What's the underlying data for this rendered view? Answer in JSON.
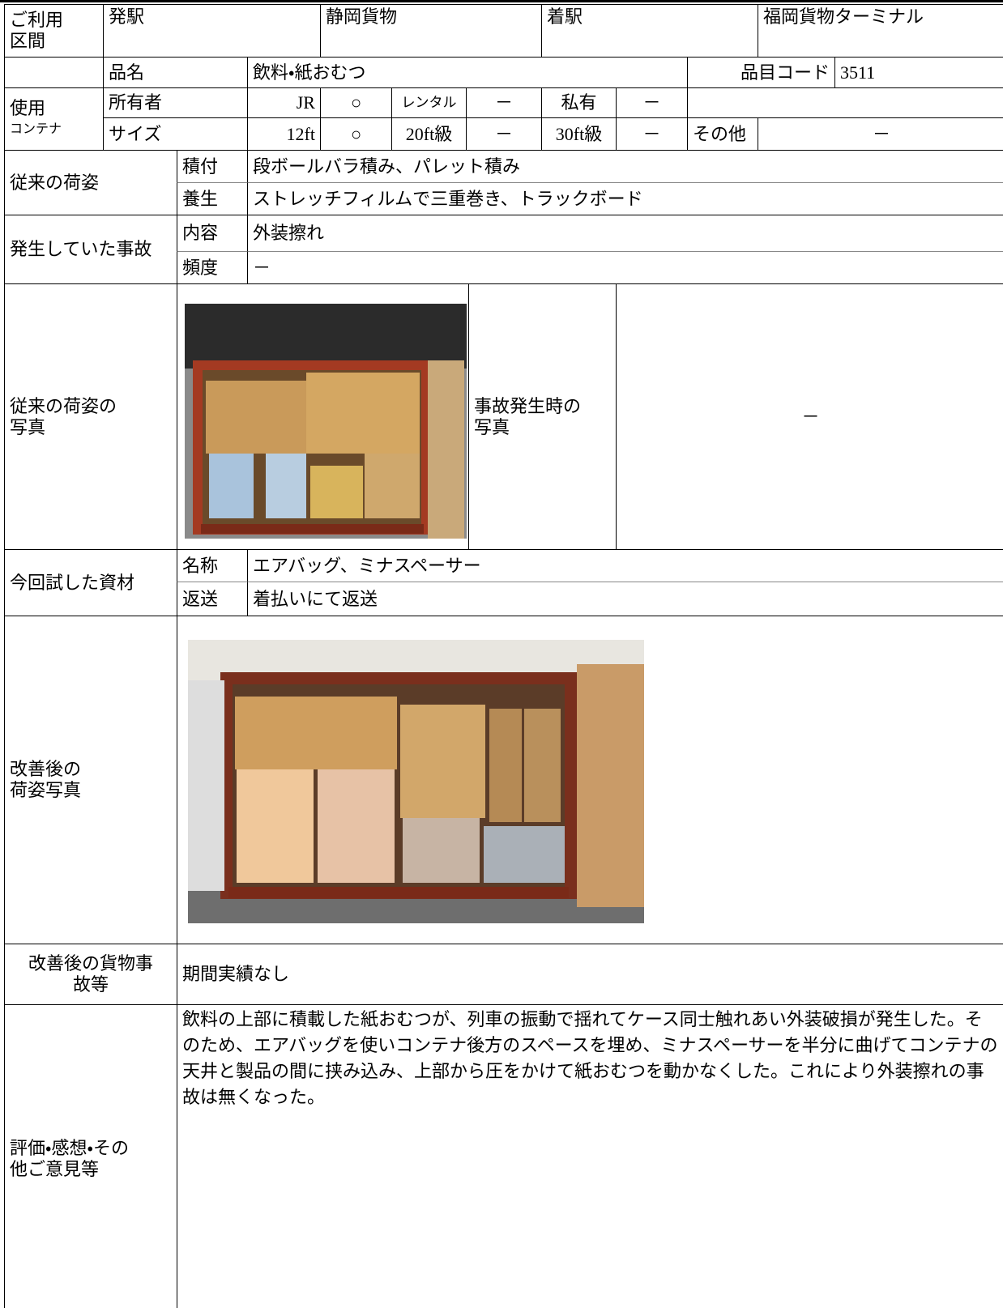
{
  "route": {
    "label": [
      "ご利用",
      "区間"
    ],
    "from_label": "発駅",
    "from": "静岡貨物",
    "to_label": "着駅",
    "to": "福岡貨物ターミナル"
  },
  "item": {
    "label": "品名",
    "name": "飲料・紙おむつ",
    "code_label": "品目コード",
    "code": "3511"
  },
  "container": {
    "label": [
      "使用",
      "コンテナ"
    ],
    "owner_label": "所有者",
    "owner": [
      "JR",
      "○",
      "レンタル",
      "－",
      "私有",
      "－"
    ],
    "size_label": "サイズ",
    "size": [
      "12ft",
      "○",
      "20ft級",
      "－",
      "30ft級",
      "－",
      "その他",
      "－"
    ]
  },
  "packing": {
    "label": "従来の荷姿",
    "rows": [
      [
        "積付",
        "段ボールバラ積み、パレット積み"
      ],
      [
        "養生",
        "ストレッチフィルムで三重巻き、トラックボード"
      ]
    ]
  },
  "accident": {
    "label": "発生していた事故",
    "rows": [
      [
        "内容",
        "外装擦れ"
      ],
      [
        "頻度",
        "－"
      ]
    ]
  },
  "photos": {
    "before_label": [
      "従来の荷姿の",
      "写真"
    ],
    "accident_label": [
      "事故発生時の",
      "写真"
    ],
    "accident_photo": "－"
  },
  "material": {
    "label": "今回試した資材",
    "rows": [
      [
        "名称",
        "エアバッグ、ミナスペーサー"
      ],
      [
        "返送",
        "着払いにて返送"
      ]
    ]
  },
  "after_photo": {
    "label": [
      "改善後の",
      "荷姿写真"
    ]
  },
  "result": {
    "label": [
      "改善後の貨物事",
      "故等"
    ],
    "text": "期間実績なし"
  },
  "evaluation": {
    "label": [
      "評価・感想・その",
      "他ご意見等"
    ],
    "text": "飲料の上部に積載した紙おむつが、列車の振動で揺れてケース同士触れあい外装破損が発生した。そのため、エアバッグを使いコンテナ後方のスペースを埋め、ミナスペーサーを半分に曲げてコンテナの天井と製品の間に挟み込み、上部から圧をかけて紙おむつを動かなくした。これにより外装擦れの事故は無くなった。"
  }
}
